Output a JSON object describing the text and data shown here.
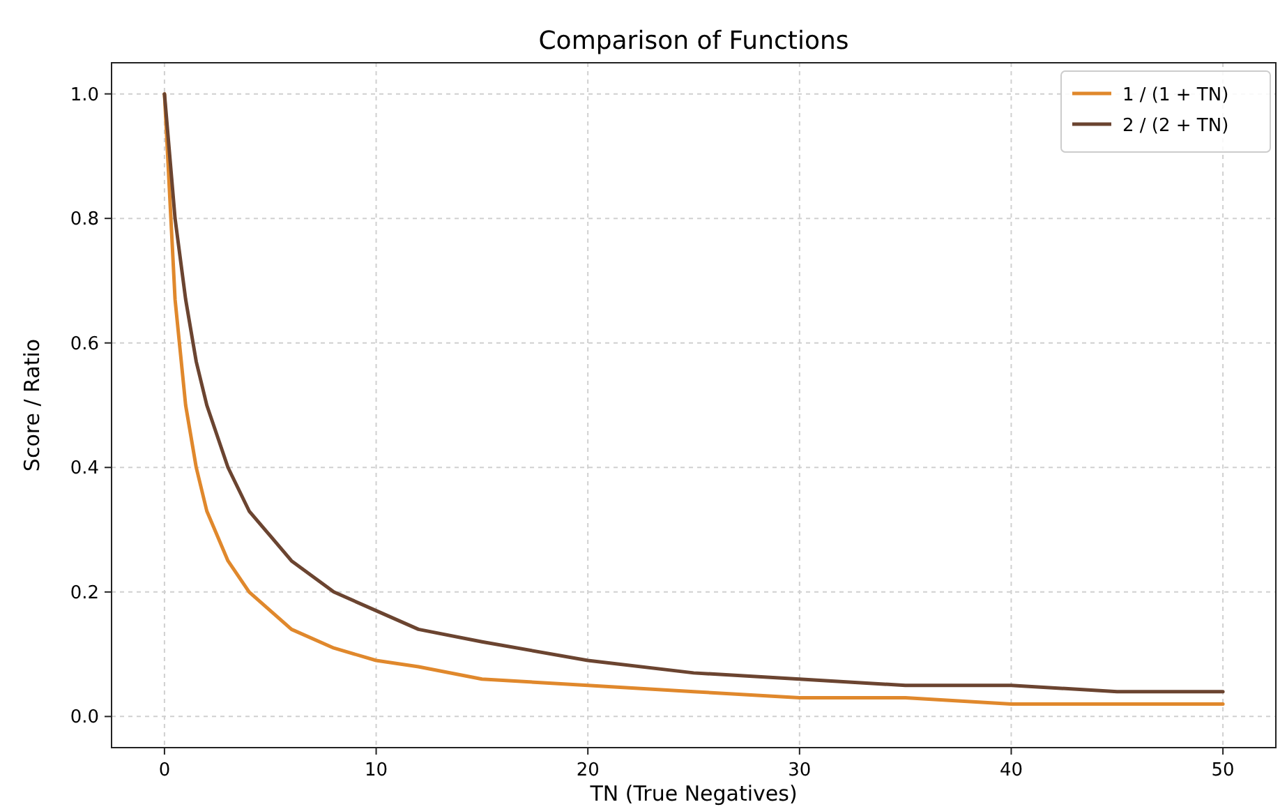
{
  "chart_data": {
    "type": "line",
    "title": "Comparison of Functions",
    "xlabel": "TN (True Negatives)",
    "ylabel": "Score / Ratio",
    "x": [
      0,
      0.5,
      1,
      1.5,
      2,
      3,
      4,
      5,
      6,
      8,
      10,
      12,
      15,
      20,
      25,
      30,
      35,
      40,
      45,
      50
    ],
    "series": [
      {
        "name": "1 / (1 + TN)",
        "color": "#e0882c",
        "values": [
          1,
          0.67,
          0.5,
          0.4,
          0.33,
          0.25,
          0.2,
          0.17,
          0.14,
          0.11,
          0.09,
          0.08,
          0.06,
          0.05,
          0.04,
          0.03,
          0.03,
          0.02,
          0.02,
          0.02
        ]
      },
      {
        "name": "2 / (2 + TN)",
        "color": "#6b4430",
        "values": [
          1,
          0.8,
          0.67,
          0.57,
          0.5,
          0.4,
          0.33,
          0.29,
          0.25,
          0.2,
          0.17,
          0.14,
          0.12,
          0.09,
          0.07,
          0.06,
          0.05,
          0.05,
          0.04,
          0.04
        ]
      }
    ],
    "xlim": [
      -2.5,
      52.5
    ],
    "xticks": [
      0,
      10,
      20,
      30,
      40,
      50
    ],
    "ylim": [
      -0.05,
      1.05
    ],
    "yticks": [
      {
        "value": 0,
        "label": "0.0"
      },
      {
        "value": 0.2,
        "label": "0.2"
      },
      {
        "value": 0.4,
        "label": "0.4"
      },
      {
        "value": 0.6,
        "label": "0.6"
      },
      {
        "value": 0.8,
        "label": "0.8"
      },
      {
        "value": 1,
        "label": "1.0"
      }
    ],
    "grid": true,
    "legend": "top right",
    "marker": "none",
    "line_style": "solid"
  }
}
